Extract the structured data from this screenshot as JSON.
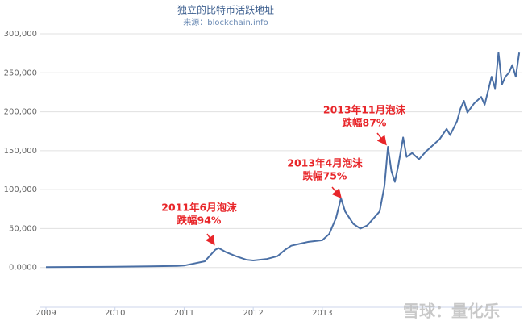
{
  "chart_data": {
    "type": "line",
    "title": "独立的比特币活跃地址",
    "subtitle": "来源：blockchain.info",
    "x": [
      2009,
      2009.5,
      2010,
      2010.5,
      2010.9,
      2011.0,
      2011.3,
      2011.45,
      2011.5,
      2011.6,
      2011.75,
      2011.9,
      2012.0,
      2012.2,
      2012.35,
      2012.45,
      2012.55,
      2012.7,
      2012.8,
      2013.0,
      2013.1,
      2013.2,
      2013.27,
      2013.33,
      2013.45,
      2013.55,
      2013.65,
      2013.75,
      2013.83,
      2013.9,
      2013.95,
      2014.0,
      2014.05,
      2014.1,
      2014.17,
      2014.22,
      2014.3,
      2014.4,
      2014.5,
      2014.6,
      2014.7,
      2014.8,
      2014.85,
      2014.95,
      2015.0,
      2015.05,
      2015.1,
      2015.2,
      2015.3,
      2015.35,
      2015.45,
      2015.5,
      2015.55,
      2015.6,
      2015.65,
      2015.7,
      2015.75,
      2015.8,
      2015.85
    ],
    "series": [
      {
        "name": "活跃地址",
        "color": "#4a6fa5",
        "values": [
          500,
          700,
          1000,
          1500,
          2000,
          2500,
          8000,
          22700,
          25000,
          20000,
          14500,
          10000,
          9000,
          11000,
          14500,
          22000,
          28000,
          31000,
          33000,
          35000,
          43000,
          64000,
          89000,
          72000,
          56000,
          50000,
          54000,
          64000,
          72000,
          105000,
          155000,
          124000,
          110000,
          131000,
          167000,
          142000,
          147000,
          139000,
          149000,
          157000,
          165000,
          178000,
          170000,
          188000,
          204000,
          214000,
          199000,
          211000,
          219000,
          209000,
          245000,
          230000,
          276000,
          235000,
          245000,
          250000,
          260000,
          245000,
          276000
        ]
      }
    ],
    "xlim": [
      2009,
      2015.86
    ],
    "xticks": [
      2009,
      2010,
      2011,
      2012,
      2013
    ],
    "ylim": [
      -50000,
      300000
    ],
    "yticks": [
      {
        "value": 0,
        "label": "0.0000"
      },
      {
        "value": 50000,
        "label": "50,000"
      },
      {
        "value": 100000,
        "label": "100,000"
      },
      {
        "value": 150000,
        "label": "150,000"
      },
      {
        "value": 200000,
        "label": "200,000"
      },
      {
        "value": 250000,
        "label": "250,000"
      },
      {
        "value": 300000,
        "label": "300,000"
      }
    ],
    "grid": true,
    "annotations": [
      {
        "lines": [
          "2011年6月泡沫",
          "跌幅94%"
        ]
      },
      {
        "lines": [
          "2013年4月泡沫",
          "跌幅75%"
        ]
      },
      {
        "lines": [
          "2013年11月泡沫",
          "跌幅87%"
        ]
      }
    ],
    "watermark": "雪球：量化乐"
  }
}
